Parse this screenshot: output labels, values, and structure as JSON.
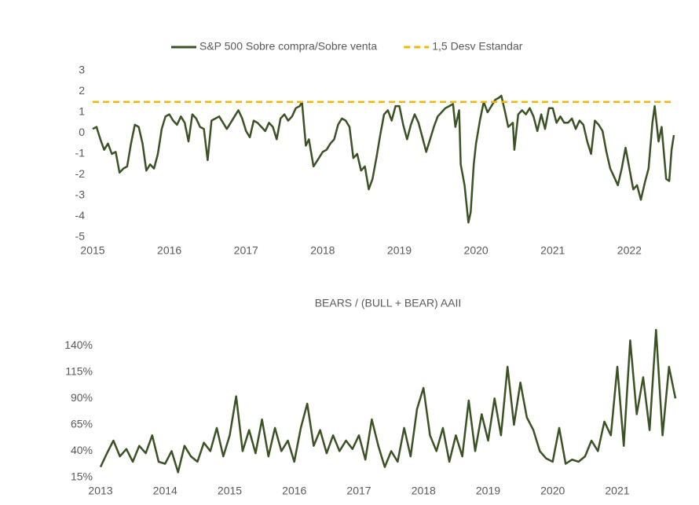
{
  "chart_data": [
    {
      "type": "line",
      "x": [
        2015.0,
        2015.05,
        2015.1,
        2015.15,
        2015.2,
        2015.25,
        2015.3,
        2015.35,
        2015.4,
        2015.45,
        2015.5,
        2015.55,
        2015.6,
        2015.65,
        2015.7,
        2015.75,
        2015.8,
        2015.85,
        2015.9,
        2015.95,
        2016.0,
        2016.05,
        2016.1,
        2016.15,
        2016.2,
        2016.25,
        2016.3,
        2016.35,
        2016.4,
        2016.45,
        2016.5,
        2016.55,
        2016.6,
        2016.65,
        2016.7,
        2016.75,
        2016.8,
        2016.85,
        2016.9,
        2016.95,
        2017.0,
        2017.05,
        2017.1,
        2017.15,
        2017.2,
        2017.25,
        2017.3,
        2017.35,
        2017.4,
        2017.45,
        2017.5,
        2017.55,
        2017.6,
        2017.65,
        2017.7,
        2017.73,
        2017.78,
        2017.82,
        2017.88,
        2017.95,
        2018.0,
        2018.05,
        2018.1,
        2018.15,
        2018.2,
        2018.25,
        2018.3,
        2018.35,
        2018.4,
        2018.45,
        2018.5,
        2018.55,
        2018.6,
        2018.65,
        2018.7,
        2018.75,
        2018.8,
        2018.85,
        2018.9,
        2018.95,
        2019.0,
        2019.05,
        2019.1,
        2019.15,
        2019.2,
        2019.25,
        2019.3,
        2019.35,
        2019.4,
        2019.45,
        2019.5,
        2019.55,
        2019.6,
        2019.65,
        2019.7,
        2019.73,
        2019.78,
        2019.8,
        2019.85,
        2019.9,
        2019.93,
        2019.97,
        2020.0,
        2020.05,
        2020.1,
        2020.15,
        2020.2,
        2020.25,
        2020.3,
        2020.33,
        2020.38,
        2020.42,
        2020.48,
        2020.5,
        2020.55,
        2020.6,
        2020.65,
        2020.7,
        2020.75,
        2020.8,
        2020.85,
        2020.9,
        2020.95,
        2021.0,
        2021.05,
        2021.1,
        2021.15,
        2021.2,
        2021.25,
        2021.3,
        2021.35,
        2021.4,
        2021.45,
        2021.5,
        2021.55,
        2021.6,
        2021.65,
        2021.7,
        2021.75,
        2021.8,
        2021.85,
        2021.9,
        2021.95,
        2022.0,
        2022.05,
        2022.1,
        2022.15,
        2022.2,
        2022.25,
        2022.3,
        2022.33,
        2022.38,
        2022.42,
        2022.48,
        2022.52,
        2022.55,
        2022.58
      ],
      "series": [
        {
          "name": "S&P 500 Sobre compra/Sobre venta",
          "color": "#3a5224",
          "line_style": "solid",
          "values": [
            0.2,
            0.3,
            -0.3,
            -0.8,
            -0.5,
            -1.0,
            -0.9,
            -1.9,
            -1.7,
            -1.6,
            -0.5,
            0.4,
            0.3,
            -0.5,
            -1.8,
            -1.5,
            -1.7,
            -1.0,
            0.2,
            0.8,
            0.9,
            0.6,
            0.4,
            0.8,
            0.5,
            -0.4,
            0.9,
            0.7,
            0.3,
            0.2,
            -1.3,
            0.6,
            0.7,
            0.8,
            0.5,
            0.2,
            0.5,
            0.8,
            1.1,
            0.7,
            0.1,
            -0.2,
            0.6,
            0.5,
            0.3,
            0.1,
            0.5,
            0.3,
            -0.3,
            0.7,
            0.9,
            0.6,
            0.8,
            1.2,
            1.3,
            1.5,
            -0.6,
            -0.3,
            -1.6,
            -1.2,
            -0.9,
            -0.8,
            -0.5,
            -0.3,
            0.4,
            0.7,
            0.6,
            0.3,
            -1.2,
            -1.0,
            -1.8,
            -1.6,
            -2.7,
            -2.2,
            -1.2,
            -0.1,
            0.9,
            1.1,
            0.6,
            1.3,
            1.3,
            0.4,
            -0.3,
            0.4,
            0.9,
            0.5,
            -0.2,
            -0.9,
            -0.3,
            0.3,
            0.8,
            1.0,
            1.2,
            1.3,
            1.4,
            0.3,
            1.1,
            -1.5,
            -2.5,
            -4.3,
            -3.8,
            -1.5,
            -0.5,
            0.6,
            1.5,
            1.0,
            1.3,
            1.6,
            1.7,
            1.8,
            1.0,
            0.3,
            0.5,
            -0.8,
            0.9,
            1.1,
            0.9,
            1.2,
            0.8,
            0.1,
            0.9,
            0.2,
            1.2,
            1.2,
            0.5,
            0.8,
            0.5,
            0.5,
            0.7,
            0.2,
            0.6,
            0.4,
            -0.4,
            -1.0,
            0.6,
            0.4,
            0.1,
            -0.9,
            -1.7,
            -2.1,
            -2.5,
            -1.7,
            -0.7,
            -1.7,
            -2.7,
            -2.5,
            -3.2,
            -2.4,
            -1.7,
            0.5,
            1.3,
            -0.4,
            0.3,
            -2.2,
            -2.3,
            -0.8,
            -0.1
          ]
        },
        {
          "name": "1,5 Desv Estandar",
          "color": "#f2b705",
          "line_style": "dashed",
          "values": [
            1.5,
            1.5,
            1.5,
            1.5,
            1.5,
            1.5,
            1.5,
            1.5,
            1.5,
            1.5,
            1.5,
            1.5,
            1.5,
            1.5,
            1.5,
            1.5,
            1.5,
            1.5,
            1.5,
            1.5,
            1.5,
            1.5,
            1.5,
            1.5,
            1.5,
            1.5,
            1.5,
            1.5,
            1.5,
            1.5,
            1.5,
            1.5,
            1.5,
            1.5,
            1.5,
            1.5,
            1.5,
            1.5,
            1.5,
            1.5,
            1.5,
            1.5,
            1.5,
            1.5,
            1.5,
            1.5,
            1.5,
            1.5,
            1.5,
            1.5,
            1.5,
            1.5,
            1.5,
            1.5,
            1.5,
            1.5,
            1.5,
            1.5,
            1.5,
            1.5,
            1.5,
            1.5,
            1.5,
            1.5,
            1.5,
            1.5,
            1.5,
            1.5,
            1.5,
            1.5,
            1.5,
            1.5,
            1.5,
            1.5,
            1.5,
            1.5,
            1.5,
            1.5,
            1.5,
            1.5,
            1.5,
            1.5,
            1.5,
            1.5,
            1.5,
            1.5,
            1.5,
            1.5,
            1.5,
            1.5,
            1.5,
            1.5,
            1.5,
            1.5,
            1.5,
            1.5,
            1.5,
            1.5,
            1.5,
            1.5,
            1.5,
            1.5,
            1.5,
            1.5,
            1.5,
            1.5,
            1.5,
            1.5,
            1.5,
            1.5,
            1.5,
            1.5,
            1.5,
            1.5,
            1.5,
            1.5,
            1.5,
            1.5,
            1.5,
            1.5,
            1.5,
            1.5,
            1.5,
            1.5,
            1.5,
            1.5,
            1.5,
            1.5,
            1.5,
            1.5,
            1.5,
            1.5,
            1.5,
            1.5,
            1.5,
            1.5,
            1.5,
            1.5,
            1.5,
            1.5,
            1.5,
            1.5,
            1.5,
            1.5,
            1.5,
            1.5,
            1.5,
            1.5,
            1.5,
            1.5,
            1.5,
            1.5,
            1.5,
            1.5,
            1.5,
            1.5,
            1.5
          ]
        }
      ],
      "xlim": [
        2015,
        2022.58
      ],
      "xticks": [
        2015,
        2016,
        2017,
        2018,
        2019,
        2020,
        2021,
        2022
      ],
      "ylim": [
        -5,
        3
      ],
      "yticks": [
        -5,
        -4,
        -3,
        -2,
        -1,
        0,
        1,
        2,
        3
      ],
      "legend": "top"
    },
    {
      "type": "line",
      "title": "BEARS / (BULL + BEAR) AAII",
      "x": [
        2013.0,
        2013.1,
        2013.2,
        2013.3,
        2013.4,
        2013.5,
        2013.6,
        2013.7,
        2013.8,
        2013.9,
        2014.0,
        2014.1,
        2014.2,
        2014.3,
        2014.4,
        2014.5,
        2014.6,
        2014.7,
        2014.8,
        2014.9,
        2015.0,
        2015.1,
        2015.2,
        2015.3,
        2015.4,
        2015.5,
        2015.6,
        2015.7,
        2015.8,
        2015.9,
        2016.0,
        2016.1,
        2016.2,
        2016.3,
        2016.4,
        2016.5,
        2016.6,
        2016.7,
        2016.8,
        2016.9,
        2017.0,
        2017.1,
        2017.2,
        2017.3,
        2017.4,
        2017.5,
        2017.6,
        2017.7,
        2017.8,
        2017.9,
        2018.0,
        2018.1,
        2018.2,
        2018.3,
        2018.4,
        2018.5,
        2018.6,
        2018.7,
        2018.8,
        2018.9,
        2019.0,
        2019.1,
        2019.2,
        2019.3,
        2019.4,
        2019.5,
        2019.6,
        2019.7,
        2019.8,
        2019.9,
        2020.0,
        2020.1,
        2020.2,
        2020.3,
        2020.4,
        2020.5,
        2020.6,
        2020.7,
        2020.8,
        2020.9,
        2021.0,
        2021.1,
        2021.2,
        2021.3,
        2021.4,
        2021.5,
        2021.6,
        2021.7,
        2021.8,
        2021.9
      ],
      "values": [
        25,
        38,
        50,
        35,
        42,
        30,
        45,
        38,
        55,
        30,
        28,
        40,
        20,
        45,
        35,
        30,
        48,
        40,
        62,
        35,
        55,
        92,
        40,
        60,
        38,
        70,
        35,
        62,
        40,
        50,
        30,
        62,
        85,
        45,
        60,
        38,
        55,
        40,
        50,
        42,
        55,
        32,
        70,
        45,
        25,
        40,
        30,
        62,
        35,
        80,
        100,
        55,
        40,
        62,
        30,
        55,
        35,
        88,
        40,
        75,
        50,
        90,
        55,
        120,
        65,
        105,
        72,
        60,
        40,
        33,
        30,
        62,
        28,
        32,
        30,
        35,
        50,
        40,
        68,
        55,
        120,
        45,
        145,
        75,
        110,
        60,
        155,
        55,
        120,
        90
      ],
      "color": "#3a5224",
      "xlim": [
        2013,
        2021.9
      ],
      "xticks": [
        2013,
        2014,
        2015,
        2016,
        2017,
        2018,
        2019,
        2020,
        2021
      ],
      "ylim": [
        15,
        155
      ],
      "yticks": [
        {
          "value": 15,
          "label": "15%"
        },
        {
          "value": 40,
          "label": "40%"
        },
        {
          "value": 65,
          "label": "65%"
        },
        {
          "value": 90,
          "label": "90%"
        },
        {
          "value": 115,
          "label": "115%"
        },
        {
          "value": 140,
          "label": "140%"
        }
      ]
    }
  ]
}
